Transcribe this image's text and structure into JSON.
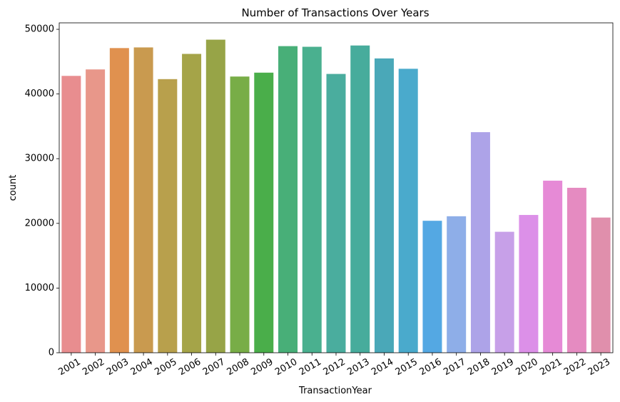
{
  "chart_data": {
    "type": "bar",
    "title": "Number of Transactions Over Years",
    "xlabel": "TransactionYear",
    "ylabel": "count",
    "ylim": [
      0,
      51000
    ],
    "yticks": [
      0,
      10000,
      20000,
      30000,
      40000,
      50000
    ],
    "grid": false,
    "categories": [
      "2001",
      "2002",
      "2003",
      "2004",
      "2005",
      "2006",
      "2007",
      "2008",
      "2009",
      "2010",
      "2011",
      "2012",
      "2013",
      "2014",
      "2015",
      "2016",
      "2017",
      "2018",
      "2019",
      "2020",
      "2021",
      "2022",
      "2023"
    ],
    "values": [
      42800,
      43800,
      47100,
      47200,
      42300,
      46200,
      48400,
      42700,
      43300,
      47400,
      47300,
      43100,
      47500,
      45500,
      43900,
      20400,
      21100,
      34100,
      18700,
      21300,
      26600,
      25500,
      20900
    ],
    "colors": [
      "#e88d8f",
      "#e8978a",
      "#e0914f",
      "#c99a4f",
      "#b8a04c",
      "#a5a448",
      "#97a447",
      "#78ad47",
      "#4aae4a",
      "#48af78",
      "#4ab08f",
      "#4aad9e",
      "#47ac9c",
      "#4aa8b8",
      "#4aaacc",
      "#54a8e3",
      "#8eaee8",
      "#ada3e8",
      "#c7a0e8",
      "#dc90e8",
      "#e68ad6",
      "#e58bc1",
      "#e08fac"
    ]
  }
}
